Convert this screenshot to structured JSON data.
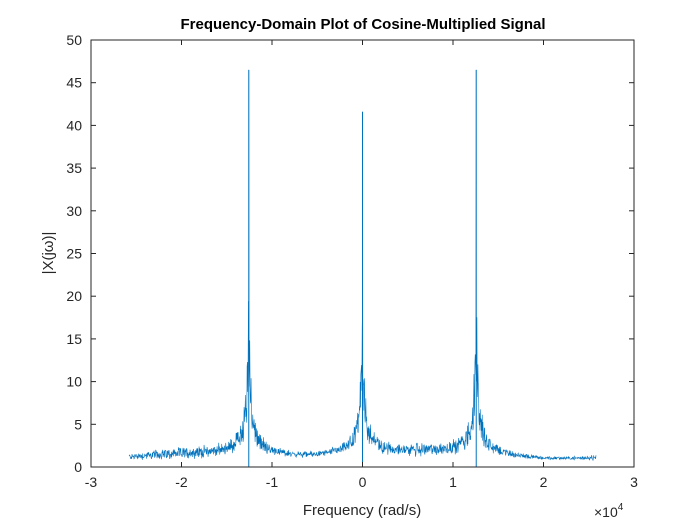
{
  "chart_data": {
    "type": "line",
    "title": "Frequency-Domain Plot of Cosine-Multiplied Signal",
    "xlabel": "Frequency (rad/s)",
    "ylabel": "|X(jω)|",
    "x_multiplier_label": "×10",
    "x_multiplier_exponent": "4",
    "xlim": [
      -3,
      3
    ],
    "ylim": [
      0,
      50
    ],
    "x_ticks": [
      -3,
      -2,
      -1,
      0,
      1,
      2,
      3
    ],
    "x_tick_labels": [
      "-3",
      "-2",
      "-1",
      "0",
      "1",
      "2",
      "3"
    ],
    "y_ticks": [
      0,
      5,
      10,
      15,
      20,
      25,
      30,
      35,
      40,
      45,
      50
    ],
    "y_tick_labels": [
      "0",
      "5",
      "10",
      "15",
      "20",
      "25",
      "30",
      "35",
      "40",
      "45",
      "50"
    ],
    "grid": false,
    "box": true,
    "series": [
      {
        "color": "#0072BD",
        "x_range": [
          -2.58,
          2.58
        ],
        "baseline_level": [
          0.5,
          1.6
        ],
        "peaks": [
          {
            "x": -1.2566,
            "y": 46.5
          },
          {
            "x": 0.0,
            "y": 41.6
          },
          {
            "x": 1.2566,
            "y": 46.5
          }
        ]
      }
    ]
  }
}
